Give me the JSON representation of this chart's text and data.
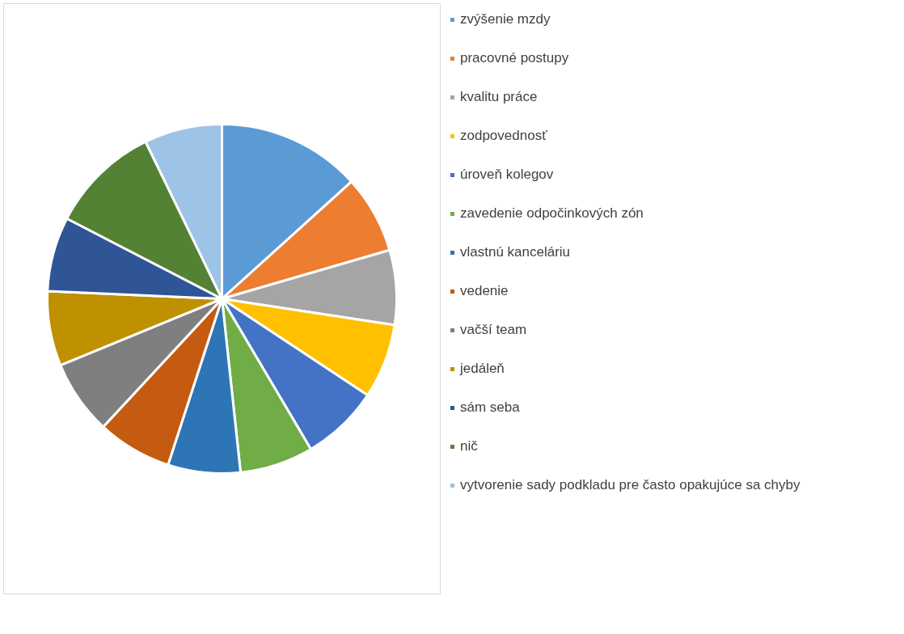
{
  "chart_data": {
    "type": "pie",
    "categories": [
      "zvýšenie mzdy",
      "pracovné postupy",
      "kvalitu práce",
      "zodpovednosť",
      "úroveň kolegov",
      "zavedenie odpočinkových zón",
      "vlastnú kanceláriu",
      "vedenie",
      "vačší team",
      "jedáleň",
      "sám seba",
      "nič",
      "vytvorenie sady podkladu pre často opakujúce sa chyby"
    ],
    "values": [
      13.3,
      7.2,
      6.9,
      6.9,
      7.2,
      6.8,
      6.7,
      6.9,
      6.9,
      6.9,
      6.9,
      10.2,
      7.2
    ],
    "colors": [
      "#5b9bd5",
      "#ed7d31",
      "#a5a5a5",
      "#ffc000",
      "#4472c4",
      "#70ad47",
      "#2e75b6",
      "#c55a11",
      "#7f7f7f",
      "#bf9000",
      "#2f5597",
      "#548235",
      "#9dc3e6"
    ],
    "legend": "right"
  }
}
